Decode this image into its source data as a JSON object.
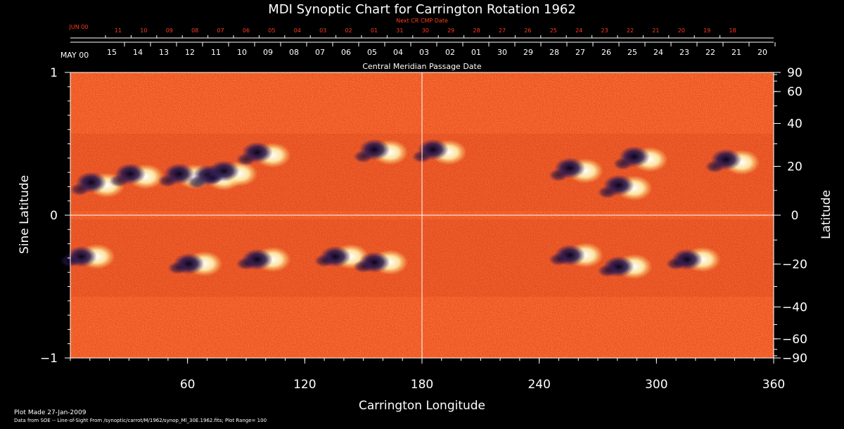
{
  "chart_data": {
    "type": "heatmap",
    "title": "MDI Synoptic Chart for Carrington Rotation 1962",
    "xlabel": "Carrington Longitude",
    "ylabel_left": "Sine Latitude",
    "ylabel_right": "Latitude",
    "xlim": [
      0,
      360
    ],
    "ylim": [
      -1,
      1
    ],
    "x_ticks": [
      60,
      120,
      180,
      240,
      300,
      360
    ],
    "y_ticks_left": [
      {
        "value": 1,
        "label": "1"
      },
      {
        "value": 0,
        "label": "0"
      },
      {
        "value": -1,
        "label": "−1"
      }
    ],
    "y_ticks_right": [
      90,
      60,
      40,
      20,
      0,
      -20,
      -40,
      -60,
      -90
    ],
    "cmp_label": "Central Meridian Passage Date",
    "cmp_month": "MAY 00",
    "cmp_dates": [
      "15",
      "14",
      "13",
      "12",
      "11",
      "10",
      "09",
      "08",
      "07",
      "06",
      "05",
      "04",
      "03",
      "02",
      "01",
      "30",
      "29",
      "28",
      "27",
      "26",
      "25",
      "24",
      "23",
      "22",
      "21",
      "20"
    ],
    "next_cmp_label": "Next CR CMP Date",
    "next_cmp_month": "JUN 00",
    "next_cmp_dates": [
      "11",
      "10",
      "09",
      "08",
      "07",
      "06",
      "05",
      "04",
      "03",
      "02",
      "01",
      "31",
      "30",
      "29",
      "28",
      "27",
      "26",
      "25",
      "24",
      "23",
      "22",
      "21",
      "20",
      "19",
      "18"
    ],
    "gridlines": {
      "x": [
        180
      ],
      "y": [
        0
      ]
    },
    "colormap": {
      "background": "#f0541e",
      "positive": "#ffffff",
      "negative": "#1a1040"
    },
    "active_regions": [
      {
        "lon": 15,
        "sinlat": 0.22,
        "polarity": "mixed"
      },
      {
        "lon": 35,
        "sinlat": 0.28,
        "polarity": "mixed"
      },
      {
        "lon": 60,
        "sinlat": 0.28,
        "polarity": "mixed"
      },
      {
        "lon": 75,
        "sinlat": 0.27,
        "polarity": "mixed"
      },
      {
        "lon": 83,
        "sinlat": 0.3,
        "polarity": "mixed"
      },
      {
        "lon": 100,
        "sinlat": 0.43,
        "polarity": "mixed"
      },
      {
        "lon": 160,
        "sinlat": 0.45,
        "polarity": "mixed"
      },
      {
        "lon": 190,
        "sinlat": 0.45,
        "polarity": "mixed"
      },
      {
        "lon": 260,
        "sinlat": 0.32,
        "polarity": "mixed"
      },
      {
        "lon": 293,
        "sinlat": 0.4,
        "polarity": "mixed"
      },
      {
        "lon": 285,
        "sinlat": 0.2,
        "polarity": "mixed"
      },
      {
        "lon": 340,
        "sinlat": 0.38,
        "polarity": "mixed"
      },
      {
        "lon": 10,
        "sinlat": -0.28,
        "polarity": "mixed"
      },
      {
        "lon": 65,
        "sinlat": -0.33,
        "polarity": "mixed"
      },
      {
        "lon": 100,
        "sinlat": -0.3,
        "polarity": "mixed"
      },
      {
        "lon": 140,
        "sinlat": -0.28,
        "polarity": "mixed"
      },
      {
        "lon": 160,
        "sinlat": -0.32,
        "polarity": "mixed"
      },
      {
        "lon": 260,
        "sinlat": -0.27,
        "polarity": "mixed"
      },
      {
        "lon": 285,
        "sinlat": -0.35,
        "polarity": "mixed"
      },
      {
        "lon": 320,
        "sinlat": -0.3,
        "polarity": "mixed"
      }
    ]
  },
  "footer": {
    "plot_made": "Plot Made 27-Jan-2009",
    "source": "Data from SOE -- Line-of-Sight From /synoptic/carrot/M/1962/synop_Ml_30E.1962.fits; Plot Range= 100"
  }
}
